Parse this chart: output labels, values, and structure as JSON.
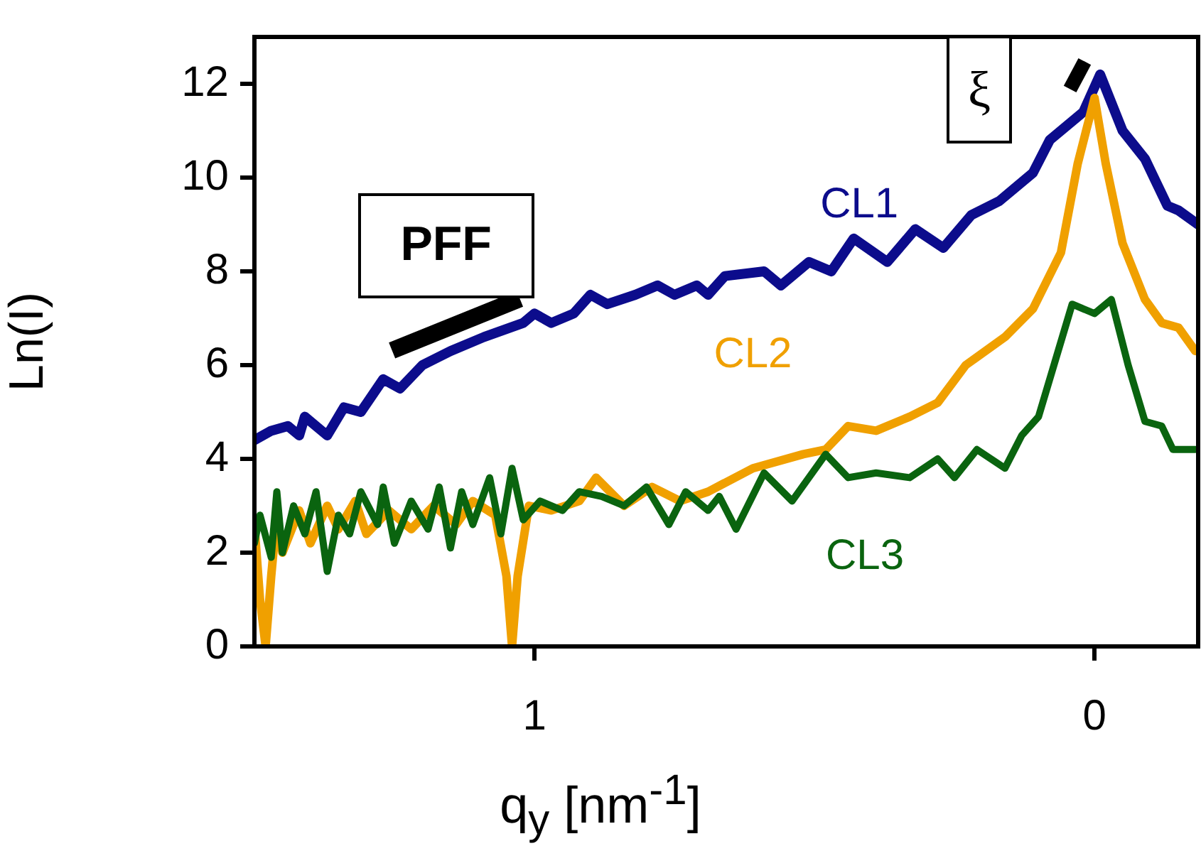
{
  "chart_data": {
    "type": "line",
    "xlabel": "q$_{y}$ [nm$^{-1}$]",
    "ylabel": "Ln(I)",
    "xlim": [
      1.5,
      -0.185
    ],
    "xticks": [
      1,
      0
    ],
    "ylim": [
      0,
      13
    ],
    "yticks": [
      0,
      2,
      4,
      6,
      8,
      10,
      12
    ],
    "grid": false,
    "legend": false,
    "marker": "none",
    "line_style": "solid",
    "annotations": [
      {
        "text": "PFF",
        "x": 1.13,
        "y": 6.5
      },
      {
        "text": "ξ",
        "x": -0.005,
        "y": 12.0
      }
    ],
    "series": [
      {
        "name": "CL1",
        "color": "#0c0c8c",
        "x": [
          1.5,
          1.47,
          1.44,
          1.42,
          1.41,
          1.37,
          1.34,
          1.31,
          1.27,
          1.24,
          1.2,
          1.15,
          1.09,
          1.02,
          1.0,
          0.97,
          0.93,
          0.9,
          0.87,
          0.82,
          0.78,
          0.75,
          0.71,
          0.69,
          0.66,
          0.59,
          0.56,
          0.51,
          0.47,
          0.43,
          0.37,
          0.32,
          0.27,
          0.22,
          0.17,
          0.11,
          0.08,
          0.02,
          -0.01,
          -0.05,
          -0.09,
          -0.13,
          -0.15,
          -0.185
        ],
        "values": [
          4.4,
          4.6,
          4.7,
          4.5,
          4.9,
          4.5,
          5.1,
          5.0,
          5.7,
          5.5,
          6.0,
          6.3,
          6.6,
          6.9,
          7.1,
          6.9,
          7.1,
          7.5,
          7.3,
          7.5,
          7.7,
          7.5,
          7.7,
          7.5,
          7.9,
          8.0,
          7.7,
          8.2,
          8.0,
          8.7,
          8.2,
          8.9,
          8.5,
          9.2,
          9.5,
          10.1,
          10.8,
          11.4,
          12.2,
          11.0,
          10.4,
          9.4,
          9.3,
          9.0
        ]
      },
      {
        "name": "CL2",
        "color": "#f0a000",
        "x": [
          1.5,
          1.49,
          1.48,
          1.47,
          1.46,
          1.45,
          1.42,
          1.4,
          1.37,
          1.35,
          1.32,
          1.3,
          1.26,
          1.22,
          1.18,
          1.14,
          1.11,
          1.07,
          1.05,
          1.04,
          1.03,
          1.01,
          0.97,
          0.92,
          0.89,
          0.84,
          0.79,
          0.74,
          0.69,
          0.61,
          0.52,
          0.48,
          0.44,
          0.39,
          0.33,
          0.28,
          0.23,
          0.16,
          0.11,
          0.06,
          0.03,
          0.0,
          -0.02,
          -0.05,
          -0.09,
          -0.12,
          -0.15,
          -0.18
        ],
        "values": [
          2.6,
          1.0,
          0,
          1.5,
          2.8,
          2.0,
          2.9,
          2.2,
          3.0,
          2.5,
          3.1,
          2.4,
          2.9,
          2.5,
          3.0,
          2.6,
          3.1,
          2.8,
          1.5,
          0,
          1.5,
          3.0,
          2.9,
          3.1,
          3.6,
          3.0,
          3.4,
          3.1,
          3.3,
          3.8,
          4.1,
          4.2,
          4.7,
          4.6,
          4.9,
          5.2,
          6.0,
          6.6,
          7.2,
          8.4,
          10.3,
          11.7,
          10.3,
          8.6,
          7.4,
          6.9,
          6.8,
          6.3
        ]
      },
      {
        "name": "CL3",
        "color": "#0a640f",
        "x": [
          1.5,
          1.49,
          1.47,
          1.46,
          1.45,
          1.43,
          1.41,
          1.39,
          1.37,
          1.35,
          1.33,
          1.31,
          1.28,
          1.27,
          1.25,
          1.22,
          1.19,
          1.17,
          1.15,
          1.13,
          1.11,
          1.08,
          1.06,
          1.04,
          1.02,
          0.99,
          0.95,
          0.92,
          0.88,
          0.84,
          0.8,
          0.76,
          0.73,
          0.69,
          0.67,
          0.64,
          0.59,
          0.54,
          0.48,
          0.44,
          0.39,
          0.33,
          0.28,
          0.25,
          0.21,
          0.16,
          0.13,
          0.1,
          0.06,
          0.04,
          0.0,
          -0.03,
          -0.06,
          -0.09,
          -0.12,
          -0.14,
          -0.18
        ],
        "values": [
          2.2,
          2.8,
          1.9,
          3.3,
          2.0,
          3.0,
          2.4,
          3.3,
          1.6,
          2.8,
          2.4,
          3.3,
          2.6,
          3.4,
          2.2,
          3.1,
          2.5,
          3.4,
          2.1,
          3.3,
          2.6,
          3.6,
          2.4,
          3.8,
          2.7,
          3.1,
          2.9,
          3.3,
          3.2,
          3.0,
          3.4,
          2.6,
          3.3,
          2.9,
          3.2,
          2.5,
          3.7,
          3.1,
          4.1,
          3.6,
          3.7,
          3.6,
          4.0,
          3.6,
          4.2,
          3.8,
          4.5,
          4.9,
          6.5,
          7.3,
          7.1,
          7.4,
          6.0,
          4.8,
          4.7,
          4.2,
          4.2
        ]
      }
    ]
  }
}
